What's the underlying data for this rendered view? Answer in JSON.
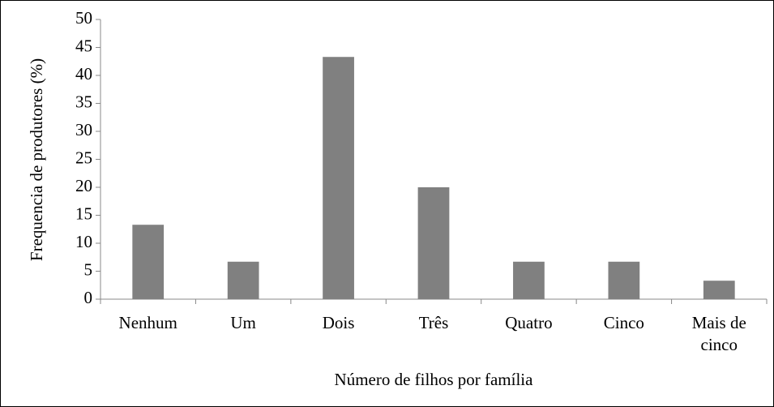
{
  "chart_data": {
    "type": "bar",
    "x_label": "Número de filhos por família",
    "y_label": "Frequencia de produtores (%)",
    "categories": [
      "Nenhum",
      "Um",
      "Dois",
      "Três",
      "Quatro",
      "Cinco",
      "Mais de cinco"
    ],
    "values": [
      13.3,
      6.7,
      43.3,
      20,
      6.7,
      6.7,
      3.3
    ],
    "color": "#808080",
    "ylim": [
      0,
      50
    ],
    "yticks": [
      0,
      5,
      10,
      15,
      20,
      25,
      30,
      35,
      40,
      45,
      50
    ],
    "grid": false
  }
}
